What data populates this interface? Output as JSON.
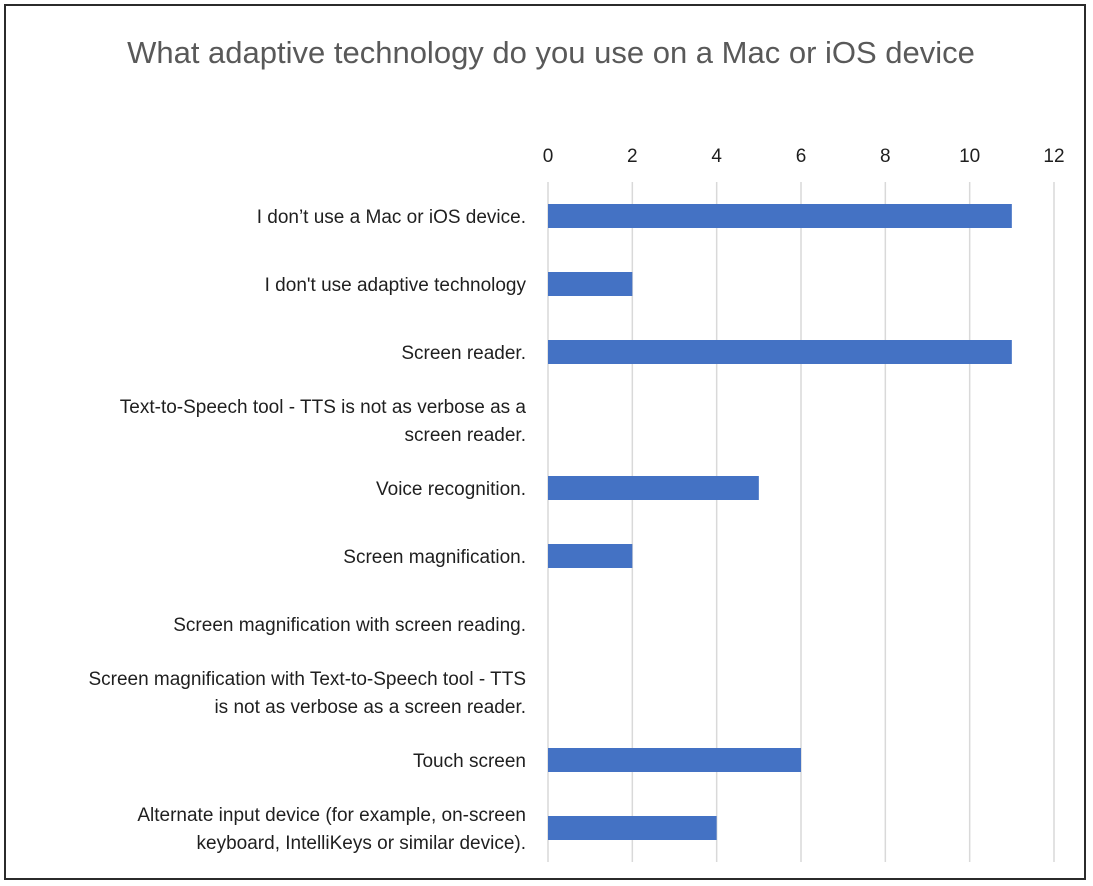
{
  "chart_data": {
    "type": "bar",
    "orientation": "horizontal",
    "title": "What adaptive technology do you use on a Mac or iOS device",
    "xlabel": "",
    "ylabel": "",
    "xlim": [
      0,
      12
    ],
    "x_ticks": [
      0,
      2,
      4,
      6,
      8,
      10,
      12
    ],
    "x_axis_position": "top",
    "grid": true,
    "legend": "none",
    "bar_color": "#4472C4",
    "gridline_color": "#d9d9d9",
    "categories": [
      [
        "I don’t use a Mac or iOS device."
      ],
      [
        "I don't use adaptive technology"
      ],
      [
        "Screen reader."
      ],
      [
        "Text-to-Speech tool - TTS is not as verbose as a",
        "screen reader."
      ],
      [
        "Voice recognition."
      ],
      [
        "Screen magnification."
      ],
      [
        "Screen magnification with screen reading."
      ],
      [
        "Screen magnification with Text-to-Speech tool - TTS",
        "is not as verbose as a screen reader."
      ],
      [
        "Touch screen"
      ],
      [
        "Alternate input device (for example, on-screen",
        "keyboard, IntelliKeys or similar device)."
      ]
    ],
    "values": [
      11,
      2,
      11,
      0,
      5,
      2,
      0,
      0,
      6,
      4
    ]
  }
}
